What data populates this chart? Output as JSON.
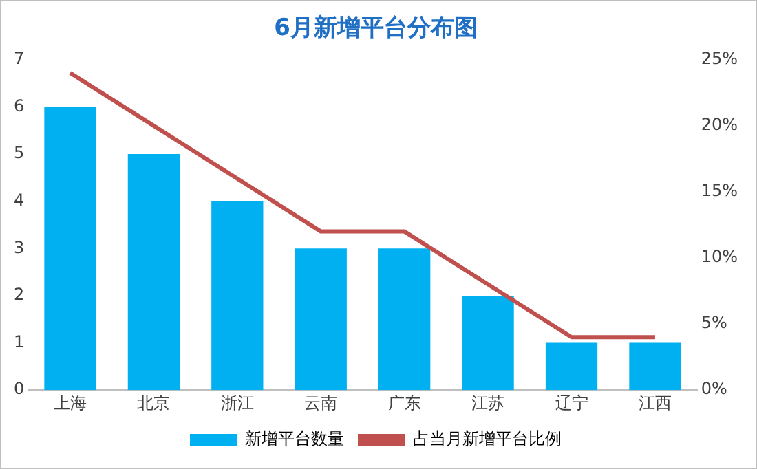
{
  "chart_data": {
    "type": "bar",
    "title": "6月新增平台分布图",
    "categories": [
      "上海",
      "北京",
      "浙江",
      "云南",
      "广东",
      "江苏",
      "辽宁",
      "江西"
    ],
    "series": [
      {
        "name": "新增平台数量",
        "color": "#00b0f0",
        "values": [
          6,
          5,
          4,
          3,
          3,
          2,
          1,
          1
        ]
      },
      {
        "name": "占当月新增平台比例",
        "type": "line",
        "axis": "y2",
        "color": "#c0504d",
        "values": [
          24,
          20,
          16,
          12,
          12,
          8,
          4,
          4
        ]
      }
    ],
    "ylim": [
      0,
      7
    ],
    "yticks": [
      0,
      1,
      2,
      3,
      4,
      5,
      6,
      7
    ],
    "y2lim": [
      0,
      25
    ],
    "y2ticks": [
      {
        "value": 0,
        "label": "0%"
      },
      {
        "value": 5,
        "label": "5%"
      },
      {
        "value": 10,
        "label": "10%"
      },
      {
        "value": 15,
        "label": "15%"
      },
      {
        "value": 20,
        "label": "20%"
      },
      {
        "value": 25,
        "label": "25%"
      }
    ],
    "grid": false,
    "legend": "bottom",
    "marker": "none"
  }
}
